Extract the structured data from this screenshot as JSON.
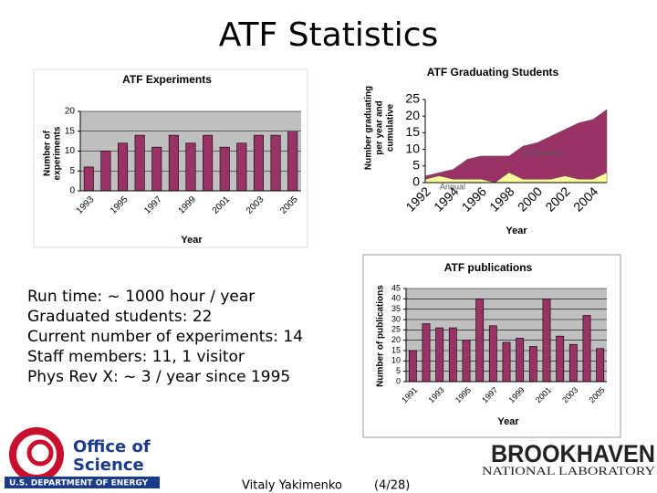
{
  "slide": {
    "title": "ATF Statistics",
    "bullets": [
      "Run time: ~ 1000 hour / year",
      "Graduated students: 22",
      "Current number of experiments: 14",
      "Staff members: 11, 1 visitor",
      "Phys Rev X: ~ 3 / year since 1995"
    ],
    "logo_left": [
      "Office of",
      "Science",
      "U.S. DEPARTMENT OF ENERGY"
    ],
    "author": "Vitaly Yakimenko",
    "page": "(4/28)",
    "logo_right": [
      "BROOKHAVEN",
      "NATIONAL LABORATORY"
    ]
  },
  "chart_data": [
    {
      "type": "bar",
      "title": "ATF Experiments",
      "xlabel": "Year",
      "ylabel_lines": [
        "Number of",
        "experiments"
      ],
      "categories": [
        "1993",
        null,
        "1995",
        null,
        "1997",
        null,
        "1999",
        null,
        "2001",
        null,
        "2003",
        null,
        "2005"
      ],
      "values": [
        6,
        10,
        12,
        14,
        11,
        14,
        12,
        14,
        11,
        12,
        14,
        14,
        15
      ],
      "color": "#993366",
      "ylim": [
        0,
        20
      ],
      "yticks": [
        0,
        5,
        10,
        15,
        20
      ],
      "grid": true
    },
    {
      "type": "area",
      "title": "ATF Graduating Students",
      "xlabel": "Year",
      "ylabel_lines": [
        "Number graduating",
        "per year and",
        "cumulative"
      ],
      "categories": [
        "1992",
        null,
        "1994",
        null,
        "1996",
        null,
        "1998",
        null,
        "2000",
        null,
        "2002",
        null,
        "2004",
        null
      ],
      "series": [
        {
          "name": "Cumulative",
          "color": "#993366",
          "values": [
            2,
            3,
            4,
            7,
            8,
            8,
            8,
            11,
            12,
            14,
            16,
            18,
            19,
            22
          ]
        },
        {
          "name": "Annual",
          "color": "#ffff99",
          "values": [
            1,
            2,
            1,
            1,
            1,
            0,
            3,
            1,
            1,
            1,
            2,
            1,
            1,
            3
          ]
        }
      ],
      "ylim": [
        0,
        25
      ],
      "yticks": [
        0,
        5,
        10,
        15,
        20,
        25
      ],
      "grid": false
    },
    {
      "type": "bar",
      "title": "ATF publications",
      "xlabel": "Year",
      "ylabel_lines": [
        "Number of publications"
      ],
      "categories": [
        "1991",
        null,
        "1993",
        null,
        "1995",
        null,
        "1997",
        null,
        "1999",
        null,
        "2001",
        null,
        "2003",
        null,
        "2005"
      ],
      "values": [
        15,
        28,
        26,
        26,
        20,
        40,
        27,
        19,
        21,
        17,
        40,
        22,
        18,
        32,
        16
      ],
      "color": "#993366",
      "ylim": [
        0,
        45
      ],
      "yticks": [
        0,
        5,
        10,
        15,
        20,
        25,
        30,
        35,
        40,
        45
      ],
      "grid": true
    }
  ]
}
